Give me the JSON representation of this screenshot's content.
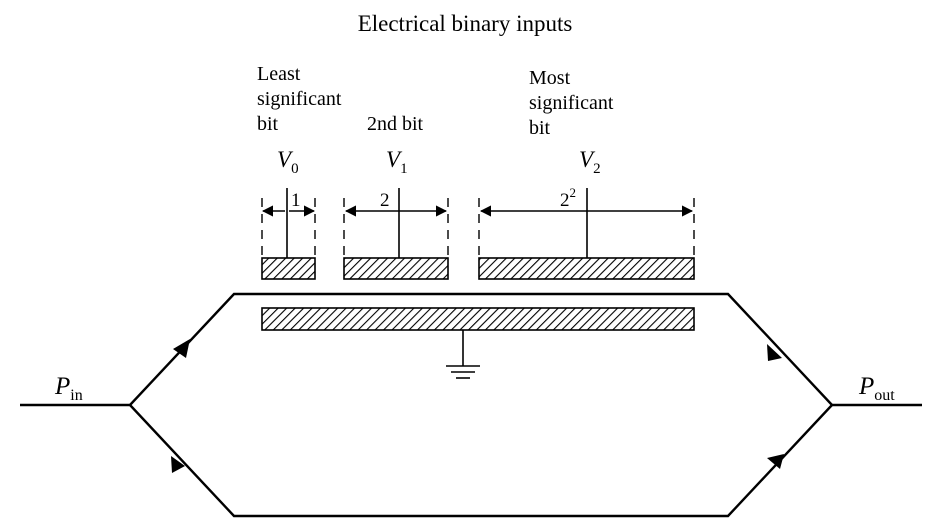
{
  "title": "Electrical binary inputs",
  "bits": [
    {
      "label": [
        "Least",
        "significant",
        "bit"
      ],
      "voltage_symbol": "V",
      "voltage_sub": "0",
      "weight": "1"
    },
    {
      "label": [
        "2nd bit"
      ],
      "voltage_symbol": "V",
      "voltage_sub": "1",
      "weight": "2"
    },
    {
      "label": [
        "Most",
        "significant",
        "bit"
      ],
      "voltage_symbol": "V",
      "voltage_sub": "2",
      "weight_base": "2",
      "weight_exp": "2"
    }
  ],
  "input": {
    "symbol": "P",
    "sub": "in"
  },
  "output": {
    "symbol": "P",
    "sub": "out"
  }
}
